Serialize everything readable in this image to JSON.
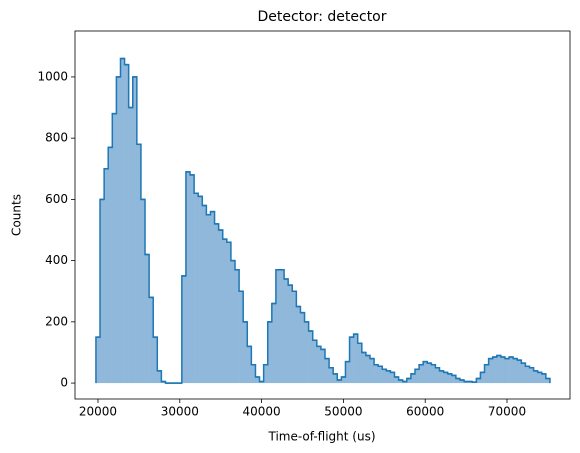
{
  "chart_data": {
    "type": "histogram",
    "title": "Detector: detector",
    "xlabel": "Time-of-flight (us)",
    "ylabel": "Counts",
    "color": "#1f77b4",
    "fill_color": "#8fb8db",
    "bins": [
      19750,
      20250,
      20750,
      21250,
      21750,
      22250,
      22750,
      23250,
      23750,
      24250,
      24750,
      25250,
      25750,
      26250,
      26750,
      27250,
      27750,
      28250,
      28750,
      29250,
      29750,
      30250,
      30750,
      31250,
      31750,
      32250,
      32750,
      33250,
      33750,
      34250,
      34750,
      35250,
      35750,
      36250,
      36750,
      37250,
      37750,
      38250,
      38750,
      39250,
      39750,
      40250,
      40750,
      41250,
      41750,
      42250,
      42750,
      43250,
      43750,
      44250,
      44750,
      45250,
      45750,
      46250,
      46750,
      47250,
      47750,
      48250,
      48750,
      49250,
      49750,
      50250,
      50750,
      51250,
      51750,
      52250,
      52750,
      53250,
      53750,
      54250,
      54750,
      55250,
      55750,
      56250,
      56750,
      57250,
      57750,
      58250,
      58750,
      59250,
      59750,
      60250,
      60750,
      61250,
      61750,
      62250,
      62750,
      63250,
      63750,
      64250,
      64750,
      65250,
      65750,
      66250,
      66750,
      67250,
      67750,
      68250,
      68750,
      69250,
      69750,
      70250,
      70750,
      71250,
      71750,
      72250,
      72750,
      73250,
      73750,
      74250,
      74750,
      75250
    ],
    "counts": [
      150,
      600,
      700,
      770,
      880,
      1000,
      1060,
      1040,
      900,
      1000,
      780,
      600,
      420,
      280,
      150,
      40,
      5,
      0,
      0,
      0,
      0,
      350,
      690,
      680,
      620,
      610,
      580,
      550,
      560,
      520,
      500,
      470,
      460,
      400,
      370,
      300,
      200,
      120,
      60,
      20,
      5,
      60,
      200,
      260,
      370,
      370,
      340,
      320,
      300,
      250,
      230,
      200,
      170,
      140,
      120,
      110,
      80,
      50,
      30,
      10,
      20,
      70,
      150,
      160,
      130,
      100,
      90,
      80,
      60,
      55,
      45,
      40,
      35,
      20,
      10,
      5,
      15,
      30,
      45,
      60,
      70,
      65,
      60,
      50,
      40,
      35,
      30,
      25,
      15,
      10,
      5,
      5,
      3,
      15,
      35,
      60,
      80,
      85,
      90,
      85,
      80,
      85,
      80,
      75,
      65,
      55,
      50,
      40,
      35,
      30,
      15
    ],
    "xlim": [
      17190,
      77700
    ],
    "ylim": [
      -52,
      1150
    ],
    "xticks": [
      20000,
      30000,
      40000,
      50000,
      60000,
      70000
    ],
    "yticks": [
      0,
      200,
      400,
      600,
      800,
      1000
    ]
  }
}
